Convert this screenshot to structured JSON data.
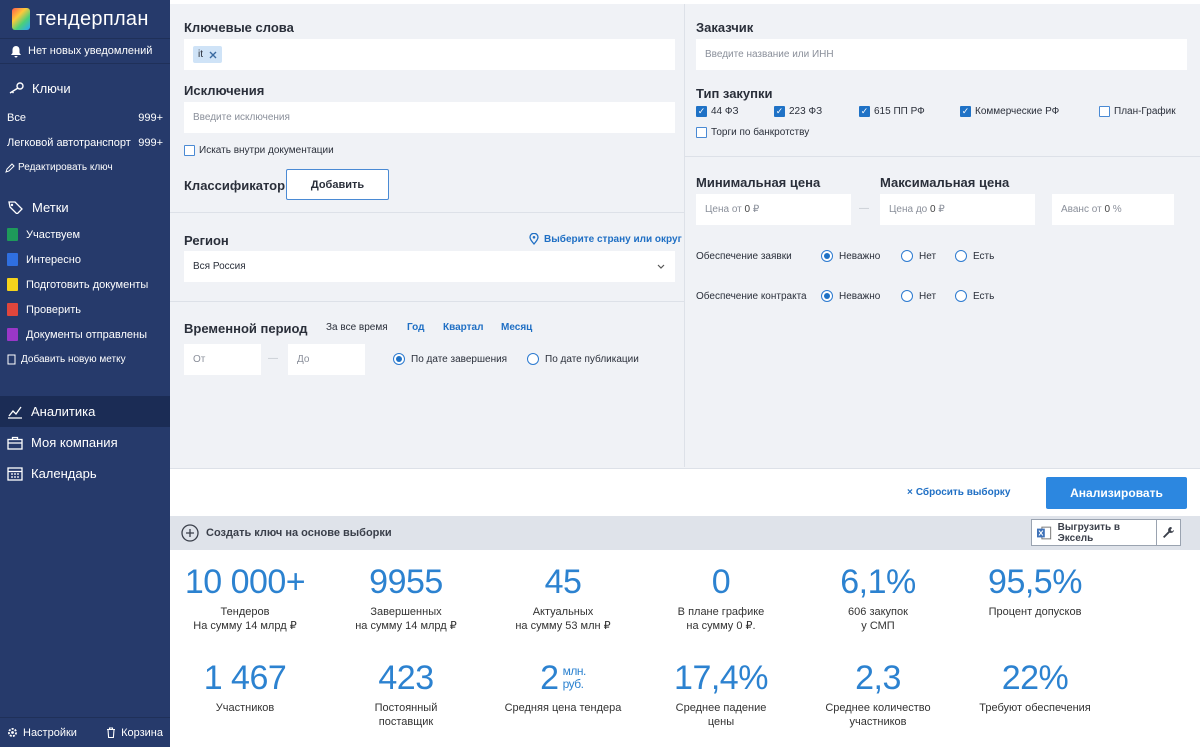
{
  "brand": {
    "name": "тендерплан"
  },
  "sidebar": {
    "notifications": "Нет новых уведомлений",
    "keys_title": "Ключи",
    "keys": [
      {
        "label": "Все",
        "count": "999+"
      },
      {
        "label": "Легковой автотранспорт",
        "count": "999+"
      }
    ],
    "edit_key": "Редактировать ключ",
    "tags_title": "Метки",
    "tags": [
      {
        "label": "Участвуем",
        "color": "#1e9a5a"
      },
      {
        "label": "Интересно",
        "color": "#2f6fe0"
      },
      {
        "label": "Подготовить документы",
        "color": "#f5d31c"
      },
      {
        "label": "Проверить",
        "color": "#e0463c"
      },
      {
        "label": "Документы отправлены",
        "color": "#9a37c8"
      }
    ],
    "add_tag": "Добавить новую метку",
    "nav": [
      {
        "label": "Аналитика",
        "icon": "chart-icon"
      },
      {
        "label": "Моя компания",
        "icon": "briefcase-icon"
      },
      {
        "label": "Календарь",
        "icon": "calendar-icon"
      }
    ],
    "settings": "Настройки",
    "trash": "Корзина"
  },
  "filters": {
    "keywords_label": "Ключевые слова",
    "keyword_chip": "it",
    "exclusions_label": "Исключения",
    "exclusions_placeholder": "Введите исключения",
    "search_in_docs": "Искать внутри документации",
    "classifier_label": "Классификатор",
    "classifier_button": "Добавить",
    "region_label": "Регион",
    "region_link": "Выберите страну или округ",
    "region_value": "Вся Россия",
    "period_label": "Временной период",
    "period_options": [
      "За все время",
      "Год",
      "Квартал",
      "Месяц"
    ],
    "date_from": "От",
    "date_to": "До",
    "by_end": "По дате завершения",
    "by_pub": "По дате публикации",
    "customer_label": "Заказчик",
    "customer_placeholder": "Введите название или ИНН",
    "purchase_type_label": "Тип закупки",
    "purchase_types": [
      {
        "label": "44 ФЗ",
        "checked": true
      },
      {
        "label": "223 ФЗ",
        "checked": true
      },
      {
        "label": "615 ПП РФ",
        "checked": true
      },
      {
        "label": "Коммерческие РФ",
        "checked": true
      },
      {
        "label": "План-График",
        "checked": false
      },
      {
        "label": "Торги по банкротству",
        "checked": false
      }
    ],
    "min_price_label": "Минимальная цена",
    "max_price_label": "Максимальная цена",
    "price_from": "Цена от",
    "price_to": "Цена до",
    "price_zero": "0",
    "ruble": "₽",
    "advance": "Аванс от",
    "percent": "%",
    "bid_security": "Обеспечение заявки",
    "contract_security": "Обеспечение контракта",
    "opt_any": "Неважно",
    "opt_no": "Нет",
    "opt_yes": "Есть",
    "dash": "—"
  },
  "actions": {
    "reset": "Сбросить выборку",
    "analyze": "Анализировать",
    "create_key": "Создать ключ на основе выборки",
    "export": "Выгрузить в Эксель"
  },
  "stats": [
    {
      "value": "10 000+",
      "label1": "Тендеров",
      "label2": "На сумму 14 млрд ₽"
    },
    {
      "value": "9955",
      "label1": "Завершенных",
      "label2": "на сумму 14 млрд ₽"
    },
    {
      "value": "45",
      "label1": "Актуальных",
      "label2": "на сумму 53 млн ₽"
    },
    {
      "value": "0",
      "label1": "В плане графике",
      "label2": "на сумму 0 ₽."
    },
    {
      "value": "6,1%",
      "label1": "606 закупок",
      "label2": "у СМП"
    },
    {
      "value": "95,5%",
      "label1": "Процент допусков",
      "label2": ""
    },
    {
      "value": "1 467",
      "label1": "Участников",
      "label2": ""
    },
    {
      "value": "423",
      "label1": "Постоянный",
      "label2": "поставщик"
    },
    {
      "value": "2",
      "unit1": "млн.",
      "unit2": "руб.",
      "label1": "Средняя цена тендера",
      "label2": ""
    },
    {
      "value": "17,4%",
      "label1": "Среднее падение",
      "label2": "цены"
    },
    {
      "value": "2,3",
      "label1": "Среднее количество",
      "label2": "участников"
    },
    {
      "value": "22%",
      "label1": "Требуют обеспечения",
      "label2": ""
    }
  ]
}
